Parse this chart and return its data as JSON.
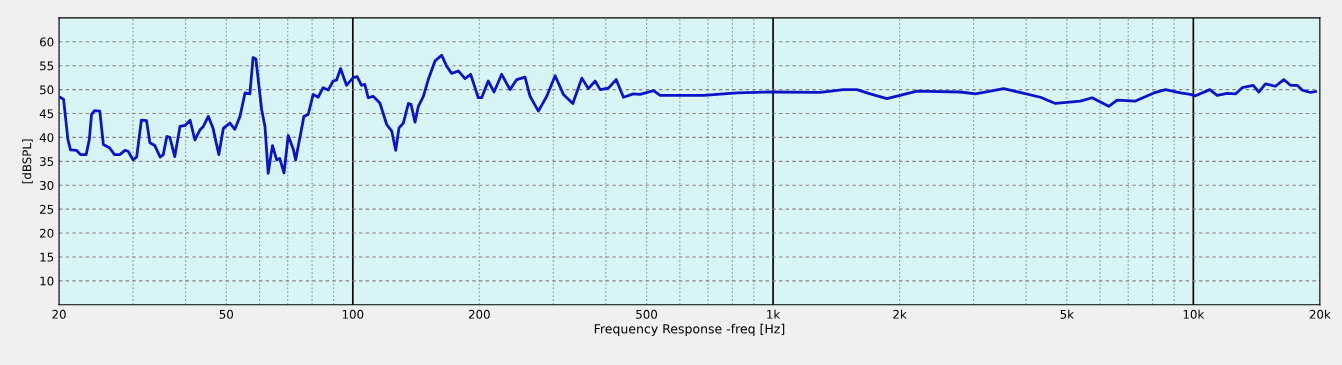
{
  "chart_data": {
    "type": "line",
    "xlabel": "Frequency Response -freq [Hz]",
    "ylabel": "[dBSPL]",
    "log": "x",
    "xlim": [
      20,
      20000
    ],
    "ylim": [
      5,
      65
    ],
    "yticks": [
      10,
      15,
      20,
      25,
      30,
      35,
      40,
      45,
      50,
      55,
      60
    ],
    "xticks": [
      20,
      {
        "value": 30,
        "label": null
      },
      {
        "value": 40,
        "label": null
      },
      50,
      {
        "value": 60,
        "label": null
      },
      {
        "value": 70,
        "label": null
      },
      {
        "value": 80,
        "label": null
      },
      {
        "value": 90,
        "label": null
      },
      100,
      200,
      {
        "value": 300,
        "label": null
      },
      {
        "value": 400,
        "label": null
      },
      500,
      {
        "value": 600,
        "label": null
      },
      {
        "value": 700,
        "label": null
      },
      {
        "value": 800,
        "label": null
      },
      {
        "value": 900,
        "label": null
      },
      {
        "value": 1000,
        "label": "1k"
      },
      {
        "value": 2000,
        "label": "2k"
      },
      {
        "value": 3000,
        "label": null
      },
      {
        "value": 4000,
        "label": null
      },
      {
        "value": 5000,
        "label": "5k"
      },
      {
        "value": 6000,
        "label": null
      },
      {
        "value": 7000,
        "label": null
      },
      {
        "value": 8000,
        "label": null
      },
      {
        "value": 9000,
        "label": null
      },
      {
        "value": 10000,
        "label": "10k"
      },
      {
        "value": 20000,
        "label": "20k"
      }
    ],
    "grid": true,
    "series": [
      {
        "color": "#0a14c8",
        "x": [
          20.1,
          20.5,
          21.0,
          21.3,
          22.0,
          22.5,
          23.2,
          23.6,
          23.9,
          24.3,
          25.0,
          25.5,
          26.4,
          27.1,
          27.9,
          28.7,
          29.2,
          30.0,
          30.6,
          31.4,
          32.3,
          32.9,
          33.8,
          34.8,
          35.4,
          36.1,
          36.7,
          37.7,
          38.8,
          39.9,
          41.0,
          42.1,
          43.3,
          44.1,
          45.3,
          46.5,
          48.0,
          49.2,
          51.0,
          52.4,
          53.9,
          55.4,
          56.9,
          57.9,
          58.8,
          60.7,
          61.8,
          62.9,
          64.4,
          65.9,
          67.0,
          68.6,
          70.2,
          72.2,
          73.1,
          76.5,
          78.3,
          80.5,
          82.7,
          85.0,
          87.4,
          89.8,
          91.5,
          93.5,
          96.6,
          100.2,
          102.4,
          104.9,
          106.8,
          108.8,
          111.8,
          116.0,
          120.4,
          123.8,
          126.5,
          128.8,
          131.9,
          135.6,
          137.6,
          140.6,
          143.2,
          147.2,
          151.2,
          156.9,
          162.7,
          167.2,
          171.9,
          178.3,
          184.9,
          190.7,
          198.9,
          202.6,
          210.0,
          216.8,
          226.1,
          236.6,
          245.5,
          256.9,
          264.1,
          276.4,
          289.4,
          303.0,
          317.0,
          333.8,
          350.7,
          363.6,
          377.3,
          387.8,
          405.8,
          423.3,
          440.5,
          465.3,
          482.7,
          519.3,
          538.6,
          683.2,
          820.5,
          984.5,
          1295,
          1471,
          1583,
          1703,
          1866,
          2200,
          2789,
          3030,
          3537,
          4329,
          4697,
          5385,
          5743,
          6290,
          6586,
          7283,
          8053,
          8588,
          9322,
          9844,
          10118,
          10941,
          11394,
          12036,
          12597,
          13067,
          13879,
          14314,
          14848,
          15683,
          16414,
          17025,
          17663,
          18154,
          19005,
          19532
        ],
        "values": [
          48.4,
          48.0,
          39.5,
          37.4,
          37.3,
          36.4,
          36.4,
          39.5,
          44.8,
          45.6,
          45.5,
          38.5,
          37.8,
          36.4,
          36.4,
          37.3,
          37.1,
          35.3,
          35.9,
          43.6,
          43.5,
          38.9,
          38.3,
          35.9,
          36.4,
          40.2,
          40.0,
          36.0,
          42.3,
          42.5,
          43.6,
          39.5,
          41.6,
          42.3,
          44.4,
          41.9,
          36.4,
          41.9,
          43.0,
          41.7,
          44.4,
          49.3,
          49.1,
          56.7,
          56.4,
          45.8,
          42.3,
          32.5,
          38.3,
          35.3,
          35.6,
          32.6,
          40.4,
          37.5,
          35.3,
          44.4,
          44.8,
          49.0,
          48.4,
          50.4,
          49.9,
          51.8,
          52.0,
          54.4,
          50.9,
          52.5,
          52.7,
          50.9,
          51.1,
          48.3,
          48.6,
          47.2,
          42.7,
          41.3,
          37.3,
          42.0,
          43.0,
          47.1,
          46.9,
          43.2,
          46.5,
          48.6,
          52.1,
          56.0,
          57.2,
          54.9,
          53.4,
          53.9,
          52.3,
          53.2,
          48.3,
          48.3,
          51.8,
          49.5,
          53.2,
          50.0,
          52.1,
          52.6,
          48.6,
          45.5,
          48.6,
          52.9,
          49.0,
          47.1,
          52.4,
          50.2,
          51.8,
          50.0,
          50.3,
          52.1,
          48.4,
          49.1,
          49.0,
          49.8,
          48.8,
          48.8,
          49.3,
          49.5,
          49.4,
          50.0,
          50.0,
          49.1,
          48.1,
          49.7,
          49.5,
          49.1,
          50.2,
          48.4,
          47.1,
          47.6,
          48.3,
          46.5,
          47.8,
          47.6,
          49.3,
          50.0,
          49.3,
          49.0,
          48.7,
          50.0,
          48.8,
          49.2,
          49.1,
          50.4,
          50.9,
          49.5,
          51.2,
          50.7,
          52.1,
          50.9,
          50.9,
          49.9,
          49.4,
          49.6
        ]
      }
    ]
  }
}
